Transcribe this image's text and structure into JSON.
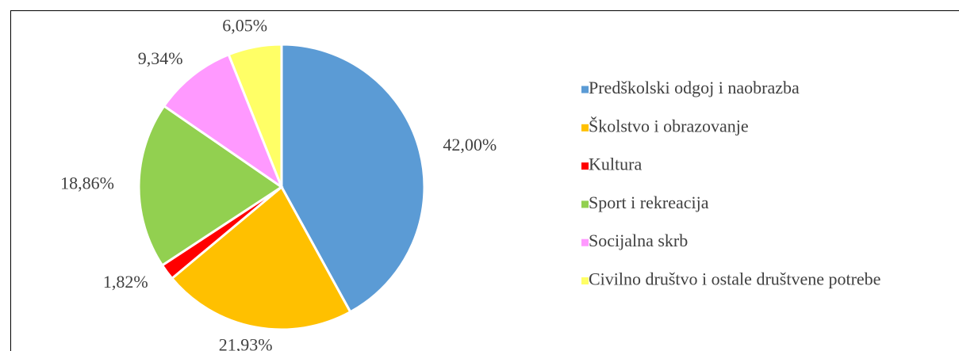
{
  "chart_data": {
    "type": "pie",
    "categories": [
      "Predškolski odgoj i naobrazba",
      "Školstvo i obrazovanje",
      "Kultura",
      "Sport i rekreacija",
      "Socijalna skrb",
      "Civilno društvo i ostale društvene potrebe"
    ],
    "values": [
      42.0,
      21.93,
      1.82,
      18.86,
      9.34,
      6.05
    ],
    "value_labels": [
      "42,00%",
      "21,93%",
      "1,82%",
      "18,86%",
      "9,34%",
      "6,05%"
    ],
    "colors": [
      "#5b9bd5",
      "#ffc000",
      "#ff0000",
      "#92d050",
      "#ff99ff",
      "#ffff66"
    ],
    "legend": "right"
  }
}
